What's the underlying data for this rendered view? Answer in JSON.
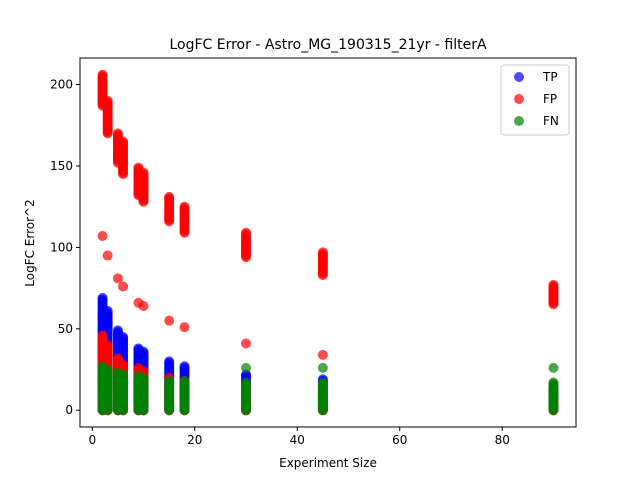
{
  "chart_data": {
    "type": "scatter",
    "title": "LogFC Error - Astro_MG_190315_21yr - filterA",
    "xlabel": "Experiment Size",
    "ylabel": "LogFC Error^2",
    "xlim": [
      -2.4,
      94.4
    ],
    "ylim": [
      -10.3,
      216.3
    ],
    "xticks": [
      0,
      20,
      40,
      60,
      80
    ],
    "yticks": [
      0,
      50,
      100,
      150,
      200
    ],
    "grid": false,
    "legend_position": "top-right",
    "point_alpha": 0.7,
    "series": [
      {
        "name": "TP",
        "color": "#0000ff",
        "groups": [
          {
            "x": 2,
            "y_min": 0,
            "y_max": 69
          },
          {
            "x": 3,
            "y_min": 0,
            "y_max": 61
          },
          {
            "x": 5,
            "y_min": 0,
            "y_max": 49
          },
          {
            "x": 6,
            "y_min": 0,
            "y_max": 45
          },
          {
            "x": 9,
            "y_min": 0,
            "y_max": 38
          },
          {
            "x": 10,
            "y_min": 0,
            "y_max": 36
          },
          {
            "x": 15,
            "y_min": 0,
            "y_max": 30
          },
          {
            "x": 18,
            "y_min": 0,
            "y_max": 27
          },
          {
            "x": 30,
            "y_min": 0,
            "y_max": 22
          },
          {
            "x": 45,
            "y_min": 0,
            "y_max": 19
          },
          {
            "x": 90,
            "y_min": 0,
            "y_max": 14
          }
        ]
      },
      {
        "name": "FP",
        "color": "#ff0000",
        "groups": [
          {
            "x": 2,
            "y_min": 0,
            "y_max": 46
          },
          {
            "x": 2,
            "y_min": 187,
            "y_max": 206
          },
          {
            "x": 3,
            "y_min": 0,
            "y_max": 40
          },
          {
            "x": 3,
            "y_min": 170,
            "y_max": 190
          },
          {
            "x": 5,
            "y_min": 0,
            "y_max": 32
          },
          {
            "x": 5,
            "y_min": 152,
            "y_max": 170
          },
          {
            "x": 6,
            "y_min": 0,
            "y_max": 28
          },
          {
            "x": 6,
            "y_min": 145,
            "y_max": 165
          },
          {
            "x": 9,
            "y_min": 0,
            "y_max": 26
          },
          {
            "x": 9,
            "y_min": 132,
            "y_max": 149
          },
          {
            "x": 10,
            "y_min": 0,
            "y_max": 24
          },
          {
            "x": 10,
            "y_min": 128,
            "y_max": 146
          },
          {
            "x": 15,
            "y_min": 0,
            "y_max": 20
          },
          {
            "x": 15,
            "y_min": 116,
            "y_max": 131
          },
          {
            "x": 18,
            "y_min": 0,
            "y_max": 18
          },
          {
            "x": 18,
            "y_min": 109,
            "y_max": 125
          },
          {
            "x": 30,
            "y_min": 0,
            "y_max": 14
          },
          {
            "x": 30,
            "y_min": 94,
            "y_max": 109
          },
          {
            "x": 45,
            "y_min": 0,
            "y_max": 12
          },
          {
            "x": 45,
            "y_min": 83,
            "y_max": 97
          },
          {
            "x": 90,
            "y_min": 0,
            "y_max": 10
          },
          {
            "x": 90,
            "y_min": 65,
            "y_max": 77
          }
        ],
        "outliers": [
          {
            "x": 2,
            "y": 107
          },
          {
            "x": 3,
            "y": 95
          },
          {
            "x": 5,
            "y": 81
          },
          {
            "x": 6,
            "y": 76
          },
          {
            "x": 9,
            "y": 66
          },
          {
            "x": 10,
            "y": 64
          },
          {
            "x": 15,
            "y": 55
          },
          {
            "x": 18,
            "y": 51
          },
          {
            "x": 30,
            "y": 41
          },
          {
            "x": 45,
            "y": 34
          }
        ]
      },
      {
        "name": "FN",
        "color": "#008000",
        "groups": [
          {
            "x": 2,
            "y_min": 0,
            "y_max": 27
          },
          {
            "x": 3,
            "y_min": 0,
            "y_max": 25
          },
          {
            "x": 5,
            "y_min": 0,
            "y_max": 23
          },
          {
            "x": 6,
            "y_min": 0,
            "y_max": 22
          },
          {
            "x": 9,
            "y_min": 0,
            "y_max": 21
          },
          {
            "x": 10,
            "y_min": 0,
            "y_max": 20
          },
          {
            "x": 15,
            "y_min": 0,
            "y_max": 18
          },
          {
            "x": 18,
            "y_min": 0,
            "y_max": 18
          },
          {
            "x": 30,
            "y_min": 0,
            "y_max": 17
          },
          {
            "x": 45,
            "y_min": 0,
            "y_max": 17
          },
          {
            "x": 90,
            "y_min": 0,
            "y_max": 17
          }
        ],
        "outliers": [
          {
            "x": 30,
            "y": 26
          },
          {
            "x": 45,
            "y": 26
          },
          {
            "x": 90,
            "y": 26
          }
        ]
      }
    ]
  }
}
